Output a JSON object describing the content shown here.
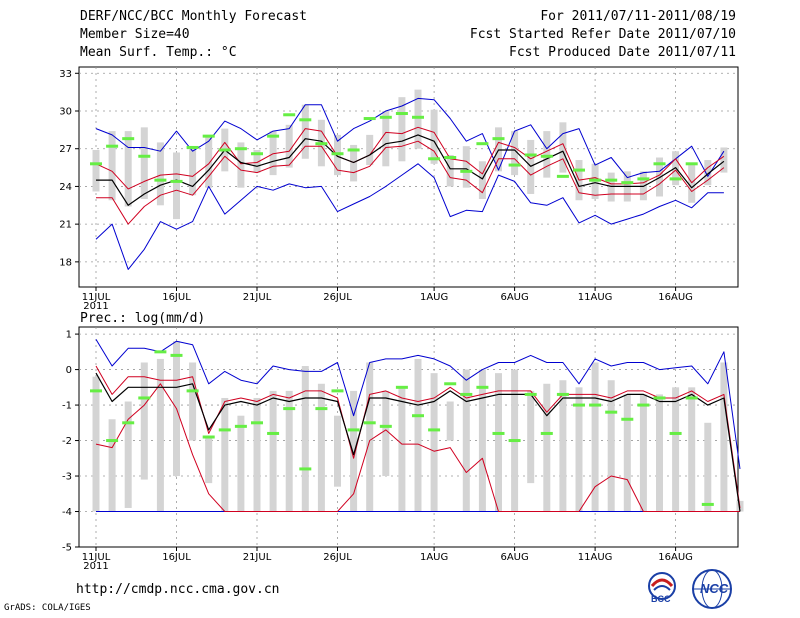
{
  "header": {
    "left": [
      "DERF/NCC/BCC Monthly Forecast",
      "Member Size=40",
      "Mean Surf. Temp.: °C"
    ],
    "right": [
      "For 2011/07/11-2011/08/19",
      "Fcst Started Refer Date 2011/07/10",
      "Fcst Produced Date 2011/07/11"
    ]
  },
  "footer": {
    "url": "http://cmdp.ncc.cma.gov.cn",
    "grads": "GrADS: COLA/IGES",
    "logo_bcc": "BCC",
    "logo_ncc": "NCC"
  },
  "colors": {
    "max": "#0000d0",
    "min": "#0000d0",
    "pct": "#d00020",
    "median": "#000000",
    "member": "#66ee44",
    "box": "#d4d4d4",
    "grid": "#999999"
  },
  "chart_data": [
    {
      "type": "box-line",
      "title": "Mean Surf. Temp.: °C",
      "x_start_day": 0,
      "xtick_labels": [
        "11JUL",
        "16JUL",
        "21JUL",
        "26JUL",
        "1AUG",
        "6AUG",
        "11AUG",
        "16AUG"
      ],
      "year_label": "2011",
      "yticks": [
        18,
        21,
        24,
        27,
        30,
        33
      ],
      "ylim": [
        16,
        33.5
      ],
      "series": {
        "max": [
          28.6,
          28.1,
          27.1,
          27.1,
          26.8,
          28.4,
          26.8,
          27.6,
          29.2,
          28.6,
          27.7,
          28.4,
          28.6,
          30.5,
          30.5,
          27.6,
          28.6,
          29.2,
          30.0,
          30.4,
          31.0,
          30.9,
          29.4,
          27.6,
          28.2,
          25.3,
          28.4,
          28.9,
          27.0,
          28.2,
          28.6,
          25.7,
          26.3,
          24.7,
          25.1,
          25.2,
          26.2,
          27.2,
          24.8,
          26.8
        ],
        "pct_hi": [
          25.8,
          25.2,
          23.8,
          24.4,
          24.9,
          25.0,
          24.8,
          25.8,
          27.5,
          25.8,
          25.9,
          26.6,
          26.8,
          28.6,
          28.4,
          26.4,
          25.9,
          26.5,
          28.3,
          28.2,
          28.7,
          28.3,
          26.2,
          26.0,
          25.0,
          27.5,
          27.1,
          26.2,
          26.8,
          27.4,
          24.5,
          24.7,
          24.2,
          24.2,
          24.3,
          24.9,
          26.2,
          24.3,
          25.5,
          26.4
        ],
        "median": [
          24.5,
          24.5,
          22.5,
          23.4,
          24.1,
          24.5,
          24.0,
          25.3,
          26.9,
          25.9,
          25.6,
          26.0,
          26.3,
          27.8,
          27.6,
          26.4,
          25.9,
          26.5,
          27.4,
          27.6,
          28.1,
          27.6,
          25.4,
          25.4,
          24.6,
          26.9,
          26.9,
          25.6,
          26.2,
          26.8,
          24.0,
          24.3,
          24.0,
          24.0,
          24.0,
          24.7,
          25.5,
          23.9,
          25.0,
          26.0
        ],
        "pct_lo": [
          23.1,
          23.1,
          21.0,
          22.4,
          23.3,
          23.7,
          23.3,
          24.8,
          26.4,
          25.3,
          25.1,
          25.6,
          25.7,
          27.2,
          27.2,
          25.3,
          25.1,
          25.6,
          27.1,
          27.2,
          27.6,
          26.8,
          24.7,
          24.5,
          23.5,
          26.2,
          26.2,
          24.9,
          25.6,
          26.2,
          23.5,
          23.3,
          23.4,
          23.4,
          23.4,
          24.2,
          25.3,
          23.6,
          24.5,
          25.5
        ],
        "min": [
          19.8,
          21.0,
          17.4,
          19.0,
          21.2,
          20.6,
          21.2,
          24.0,
          21.8,
          22.9,
          24.0,
          23.7,
          24.2,
          23.9,
          24.0,
          22.0,
          22.6,
          23.2,
          24.0,
          24.9,
          25.8,
          24.7,
          21.6,
          22.1,
          22.0,
          24.9,
          24.4,
          22.7,
          22.5,
          23.1,
          21.1,
          21.7,
          21.0,
          21.4,
          21.8,
          22.4,
          22.9,
          22.3,
          23.5,
          23.5
        ],
        "box_lo": [
          23.6,
          22.9,
          22.4,
          23.0,
          22.5,
          21.4,
          23.3,
          23.9,
          25.2,
          23.9,
          25.1,
          24.9,
          25.5,
          26.2,
          25.6,
          24.9,
          24.4,
          25.7,
          25.6,
          26.0,
          27.0,
          25.8,
          24.0,
          23.9,
          23.0,
          25.2,
          24.9,
          23.4,
          24.7,
          25.1,
          22.9,
          23.0,
          22.8,
          22.8,
          22.9,
          23.2,
          24.1,
          22.7,
          24.1,
          25.1
        ],
        "box_hi": [
          26.9,
          28.4,
          28.4,
          28.7,
          27.5,
          26.7,
          27.0,
          28.1,
          28.6,
          27.5,
          26.9,
          28.4,
          28.9,
          30.5,
          29.3,
          28.1,
          27.3,
          28.1,
          30.0,
          31.1,
          31.7,
          30.1,
          26.5,
          27.2,
          26.0,
          28.7,
          28.4,
          27.7,
          28.4,
          29.1,
          26.1,
          25.8,
          25.1,
          25.2,
          25.2,
          26.3,
          26.8,
          25.7,
          26.1,
          27.1
        ],
        "member": [
          25.8,
          27.2,
          27.8,
          26.4,
          24.5,
          24.4,
          27.1,
          28.0,
          26.9,
          27.0,
          26.6,
          28.0,
          29.7,
          29.3,
          27.4,
          26.6,
          26.9,
          29.4,
          29.5,
          29.8,
          29.5,
          26.2,
          26.3,
          25.2,
          27.4,
          27.8,
          25.7,
          26.5,
          26.4,
          24.8,
          25.3,
          24.5,
          24.5,
          24.3,
          24.6,
          25.8,
          24.6,
          25.8,
          null,
          null
        ]
      }
    },
    {
      "type": "box-line",
      "title": "Prec.: log(mm/d)",
      "x_start_day": 0,
      "xtick_labels": [
        "11JUL",
        "16JUL",
        "21JUL",
        "26JUL",
        "1AUG",
        "6AUG",
        "11AUG",
        "16AUG"
      ],
      "year_label": "2011",
      "yticks": [
        -5,
        -4,
        -3,
        -2,
        -1,
        0,
        1
      ],
      "ylim": [
        -5,
        1.2
      ],
      "series": {
        "max": [
          0.85,
          0.1,
          0.6,
          0.6,
          0.5,
          0.8,
          0.7,
          -0.4,
          -0.05,
          -0.3,
          -0.4,
          0.1,
          0.0,
          -0.05,
          -0.05,
          0.2,
          -1.3,
          0.2,
          0.3,
          0.3,
          0.4,
          0.3,
          0.1,
          -0.3,
          0.0,
          0.2,
          0.2,
          0.4,
          0.2,
          0.2,
          -0.4,
          0.3,
          0.1,
          0.2,
          0.2,
          0.0,
          0.05,
          0.1,
          -0.4,
          0.5,
          -2.8
        ],
        "pct_hi": [
          0.1,
          -0.7,
          -0.2,
          -0.2,
          -0.3,
          -0.3,
          -0.2,
          -1.8,
          -0.9,
          -0.8,
          -0.9,
          -0.7,
          -0.8,
          -0.6,
          -0.6,
          -0.8,
          -2.5,
          -0.7,
          -0.6,
          -0.8,
          -0.9,
          -0.8,
          -0.5,
          -0.8,
          -0.7,
          -0.6,
          -0.6,
          -0.6,
          -1.2,
          -0.7,
          -0.7,
          -0.7,
          -0.8,
          -0.6,
          -0.6,
          -0.8,
          -0.8,
          -0.6,
          -0.9,
          -0.7,
          -3.9
        ],
        "median": [
          -0.1,
          -0.9,
          -0.5,
          -0.5,
          -0.5,
          -0.5,
          -0.4,
          -1.7,
          -1.0,
          -0.9,
          -1.0,
          -0.8,
          -0.9,
          -0.8,
          -0.8,
          -0.9,
          -2.4,
          -0.8,
          -0.8,
          -0.9,
          -1.0,
          -0.9,
          -0.6,
          -0.9,
          -0.8,
          -0.7,
          -0.7,
          -0.7,
          -1.3,
          -0.8,
          -0.8,
          -0.8,
          -0.9,
          -0.7,
          -0.7,
          -0.9,
          -0.9,
          -0.7,
          -1.0,
          -0.8,
          -4.0
        ],
        "pct_lo": [
          -2.1,
          -2.2,
          -1.4,
          -1.0,
          -0.4,
          -1.1,
          -2.4,
          -3.5,
          -4.0,
          -4.0,
          -4.0,
          -4.0,
          -4.0,
          -4.0,
          -4.0,
          -4.0,
          -3.5,
          -2.0,
          -1.7,
          -2.1,
          -2.1,
          -2.3,
          -2.2,
          -2.9,
          -2.5,
          -4.0,
          -4.0,
          -4.0,
          -4.0,
          -4.0,
          -4.0,
          -3.3,
          -3.0,
          -3.1,
          -4.0,
          -4.0,
          -4.0,
          -4.0,
          -4.0,
          -4.0,
          -4.0
        ],
        "min": [
          -4.0,
          -4.0,
          -4.0,
          -4.0,
          -4.0,
          -4.0,
          -4.0,
          -4.0,
          -4.0,
          -4.0,
          -4.0,
          -4.0,
          -4.0,
          -4.0,
          -4.0,
          -4.0,
          -4.0,
          -4.0,
          -4.0,
          -4.0,
          -4.0,
          -4.0,
          -4.0,
          -4.0,
          -4.0,
          -4.0,
          -4.0,
          -4.0,
          -4.0,
          -4.0,
          -4.0,
          -4.0,
          -4.0,
          -4.0,
          -4.0,
          -4.0,
          -4.0,
          -4.0,
          -4.0,
          -4.0,
          -4.0
        ],
        "box_lo": [
          -4.0,
          -4.0,
          -3.9,
          -3.1,
          -4.0,
          -3.0,
          -2.0,
          -3.2,
          -4.0,
          -4.0,
          -4.0,
          -4.0,
          -4.0,
          -4.0,
          -4.0,
          -3.3,
          -4.0,
          -4.0,
          -3.0,
          -4.0,
          -4.0,
          -4.0,
          -2.0,
          -4.0,
          -4.0,
          -4.0,
          -4.0,
          -3.2,
          -4.0,
          -4.0,
          -4.0,
          -4.0,
          -4.0,
          -4.0,
          -4.0,
          -4.0,
          -4.0,
          -4.0,
          -4.0,
          -4.0,
          -4.0
        ],
        "box_hi": [
          -0.2,
          -1.4,
          -0.9,
          0.2,
          0.3,
          0.8,
          0.2,
          -1.9,
          -0.8,
          -1.3,
          -0.8,
          -0.6,
          -0.6,
          0.1,
          -0.4,
          -1.3,
          -0.6,
          0.2,
          -0.6,
          -0.5,
          0.3,
          -0.1,
          -0.9,
          0.0,
          0.0,
          -0.1,
          0.0,
          -0.6,
          -0.4,
          -0.3,
          -0.5,
          0.2,
          -0.3,
          -0.7,
          -0.7,
          -0.7,
          -0.5,
          -0.5,
          -1.5,
          0.2,
          -3.7
        ],
        "member": [
          -0.6,
          -2.0,
          -1.5,
          -0.8,
          0.5,
          0.4,
          -0.6,
          -1.9,
          -1.7,
          -1.6,
          -1.5,
          -1.8,
          -1.1,
          -2.8,
          -1.1,
          -0.6,
          -1.7,
          -1.5,
          -1.6,
          -0.5,
          -1.3,
          -1.7,
          -0.4,
          -0.7,
          -0.5,
          -1.8,
          -2.0,
          -0.7,
          -1.8,
          -0.7,
          -1.0,
          -1.0,
          -1.2,
          -1.4,
          -1.0,
          -0.8,
          -1.8,
          -0.8,
          -3.8,
          null,
          null
        ]
      }
    }
  ]
}
